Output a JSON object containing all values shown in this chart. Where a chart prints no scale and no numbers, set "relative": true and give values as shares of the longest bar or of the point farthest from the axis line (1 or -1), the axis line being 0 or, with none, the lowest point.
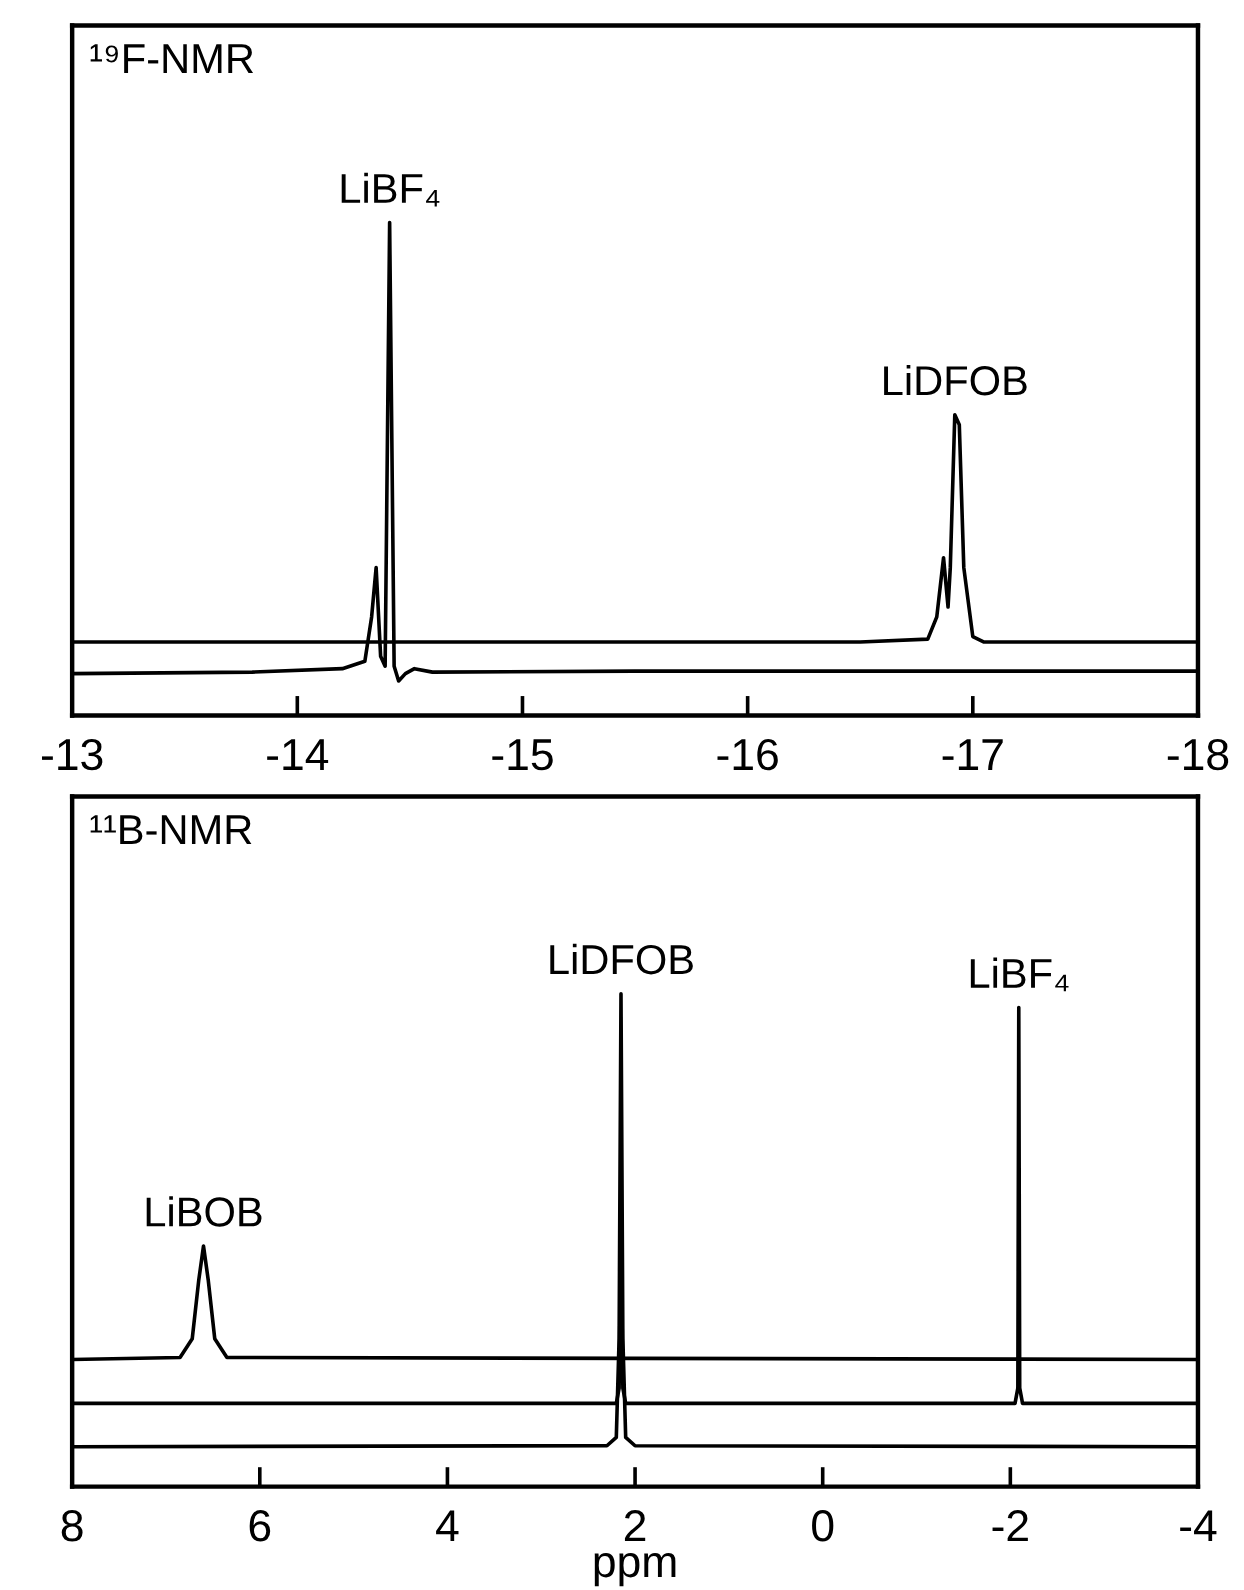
{
  "chart_data": [
    {
      "type": "line",
      "title": "¹⁹F-NMR",
      "relative": true,
      "tick_labels": "x",
      "marker": "none",
      "line_style": "solid",
      "xlim": [
        -13,
        -18
      ],
      "xticks": [
        -13,
        -14,
        -15,
        -16,
        -17,
        -18
      ],
      "series": [
        {
          "color": "#000000",
          "x": [
            -13,
            -13.8,
            -14.2,
            -14.3,
            -14.33,
            -14.35,
            -14.37,
            -14.39,
            -14.41,
            -14.43,
            -14.45,
            -14.48,
            -14.52,
            -14.6,
            -15.5,
            -18
          ],
          "values": [
            0.085,
            0.088,
            0.095,
            0.11,
            0.2,
            0.3,
            0.12,
            0.1,
            1.0,
            0.1,
            0.07,
            0.085,
            0.095,
            0.088,
            0.09,
            0.09
          ]
        },
        {
          "color": "#000000",
          "x": [
            -13,
            -16.5,
            -16.8,
            -16.84,
            -16.87,
            -16.89,
            -16.9,
            -16.92,
            -16.94,
            -16.96,
            -17.0,
            -17.05,
            -18
          ],
          "values": [
            0.149,
            0.149,
            0.155,
            0.2,
            0.32,
            0.22,
            0.3,
            0.61,
            0.59,
            0.3,
            0.16,
            0.149,
            0.149
          ]
        }
      ],
      "annotations": [
        {
          "text": "LiBF₄",
          "x": -14.41,
          "y": 1.0
        },
        {
          "text": "LiDFOB",
          "x": -16.92,
          "y": 0.61
        }
      ]
    },
    {
      "type": "line",
      "title": "¹¹B-NMR",
      "xlabel": "ppm",
      "relative": true,
      "tick_labels": "x",
      "marker": "none",
      "line_style": "solid",
      "xlim": [
        8,
        -4
      ],
      "xticks": [
        8,
        6,
        4,
        2,
        0,
        -2,
        -4
      ],
      "series": [
        {
          "color": "#000000",
          "x": [
            8,
            6.85,
            6.72,
            6.65,
            6.6,
            6.55,
            6.48,
            6.35,
            -4
          ],
          "values": [
            0.258,
            0.262,
            0.3,
            0.42,
            0.488,
            0.42,
            0.3,
            0.262,
            0.258
          ]
        },
        {
          "color": "#000000",
          "x": [
            8,
            2.2,
            2.17,
            2.15,
            2.13,
            2.1,
            -2.05,
            -2.08,
            -2.09,
            -2.1,
            -2.13,
            -4
          ],
          "values": [
            0.169,
            0.169,
            0.2,
            0.56,
            0.2,
            0.169,
            0.169,
            0.2,
            0.972,
            0.2,
            0.169,
            0.169
          ]
        },
        {
          "color": "#000000",
          "x": [
            8,
            2.3,
            2.2,
            2.17,
            2.15,
            2.13,
            2.1,
            2.0,
            -4
          ],
          "values": [
            0.081,
            0.083,
            0.1,
            0.3,
            1.0,
            0.3,
            0.1,
            0.083,
            0.081
          ]
        }
      ],
      "annotations": [
        {
          "text": "LiBOB",
          "x": 6.6,
          "y": 0.488
        },
        {
          "text": "LiDFOB",
          "x": 2.15,
          "y": 1.0
        },
        {
          "text": "LiBF₄",
          "x": -2.09,
          "y": 0.972
        }
      ]
    }
  ]
}
